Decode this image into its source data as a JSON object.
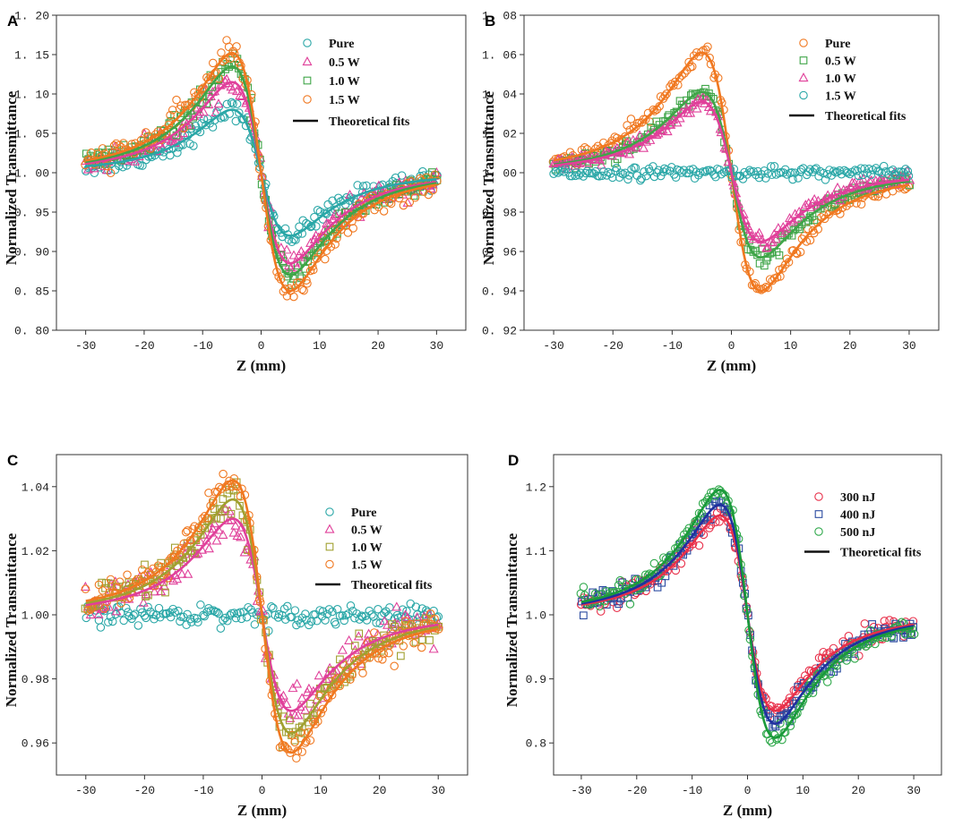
{
  "chart_data": [
    {
      "panel": "A",
      "type": "scatter",
      "xlabel": "Z  (mm)",
      "ylabel": "Normalized Transmittance",
      "xlim": [
        -35,
        35
      ],
      "ylim": [
        0.8,
        1.2
      ],
      "xticks": [
        -30,
        -20,
        -10,
        0,
        10,
        20,
        30
      ],
      "xtick_labels": [
        "-30",
        "-20",
        "-10",
        "0",
        "10",
        "20",
        "30"
      ],
      "yticks": [
        0.8,
        0.85,
        0.9,
        0.95,
        1.0,
        1.05,
        1.1,
        1.15,
        1.2
      ],
      "ytick_labels": [
        "0. 80",
        "0. 85",
        "0. 90",
        "0. 95",
        "1. 00",
        "1. 05",
        "1. 10",
        "1. 15",
        "1. 20"
      ],
      "legend_position": "top-right",
      "fit_label": "Theoretical fits",
      "series": [
        {
          "name": "Pure",
          "marker": "circle",
          "color": "#2aa7a7",
          "peak": 1.08,
          "valley": 0.92,
          "noise": 0.006
        },
        {
          "name": "0.5 W",
          "marker": "triangle",
          "color": "#e0409a",
          "peak": 1.115,
          "valley": 0.885,
          "noise": 0.007
        },
        {
          "name": "1.0 W",
          "marker": "square",
          "color": "#3fa548",
          "peak": 1.135,
          "valley": 0.87,
          "noise": 0.007
        },
        {
          "name": "1.5 W",
          "marker": "circle",
          "color": "#f07820",
          "peak": 1.152,
          "valley": 0.85,
          "noise": 0.008
        }
      ]
    },
    {
      "panel": "B",
      "type": "scatter",
      "xlabel": "Z  (mm)",
      "ylabel": "Normalized Transmittance",
      "xlim": [
        -35,
        35
      ],
      "ylim": [
        0.92,
        1.08
      ],
      "xticks": [
        -30,
        -20,
        -10,
        0,
        10,
        20,
        30
      ],
      "xtick_labels": [
        "-30",
        "-20",
        "-10",
        "0",
        "10",
        "20",
        "30"
      ],
      "yticks": [
        0.92,
        0.94,
        0.96,
        0.98,
        1.0,
        1.02,
        1.04,
        1.06,
        1.08
      ],
      "ytick_labels": [
        "0. 92",
        "0. 94",
        "0. 96",
        "0. 98",
        "1. 00",
        "1. 02",
        "1. 04",
        "1. 06",
        "1. 08"
      ],
      "legend_position": "top-right",
      "fit_label": "Theoretical fits",
      "series": [
        {
          "name": "Pure",
          "marker": "circle",
          "color": "#f07820",
          "peak": 1.061,
          "valley": 0.94,
          "noise": 0.002
        },
        {
          "name": "0.5 W",
          "marker": "square",
          "color": "#3fa548",
          "peak": 1.041,
          "valley": 0.957,
          "noise": 0.002
        },
        {
          "name": "1.0 W",
          "marker": "triangle",
          "color": "#e0409a",
          "peak": 1.036,
          "valley": 0.965,
          "noise": 0.002
        },
        {
          "name": "1.5 W",
          "marker": "circle",
          "color": "#2aa7a7",
          "peak": 1.0,
          "valley": 1.0,
          "noise": 0.0015
        }
      ]
    },
    {
      "panel": "C",
      "type": "scatter",
      "xlabel": "Z  (mm)",
      "ylabel": "Normalized Transmittance",
      "xlim": [
        -35,
        35
      ],
      "ylim": [
        0.95,
        1.05
      ],
      "xticks": [
        -30,
        -20,
        -10,
        0,
        10,
        20,
        30
      ],
      "xtick_labels": [
        "-30",
        "-20",
        "-10",
        "0",
        "10",
        "20",
        "30"
      ],
      "yticks": [
        0.96,
        0.98,
        1.0,
        1.02,
        1.04
      ],
      "ytick_labels": [
        "0.96",
        "0.98",
        "1.00",
        "1.02",
        "1.04"
      ],
      "legend_position": "right",
      "fit_label": "Theoretical fits",
      "series": [
        {
          "name": "Pure",
          "marker": "circle",
          "color": "#2aa7a7",
          "peak": 1.0,
          "valley": 1.0,
          "noise": 0.0015
        },
        {
          "name": "0.5 W",
          "marker": "triangle",
          "color": "#e0409a",
          "peak": 1.03,
          "valley": 0.97,
          "noise": 0.003
        },
        {
          "name": "1.0 W",
          "marker": "square",
          "color": "#a0a030",
          "peak": 1.036,
          "valley": 0.963,
          "noise": 0.003
        },
        {
          "name": "1.5 W",
          "marker": "circle",
          "color": "#f07820",
          "peak": 1.042,
          "valley": 0.957,
          "noise": 0.0025
        }
      ]
    },
    {
      "panel": "D",
      "type": "scatter",
      "xlabel": "Z  (mm)",
      "ylabel": "Normalized Transmittance",
      "xlim": [
        -35,
        35
      ],
      "ylim": [
        0.75,
        1.25
      ],
      "xticks": [
        -30,
        -20,
        -10,
        0,
        10,
        20,
        30
      ],
      "xtick_labels": [
        "-30",
        "-20",
        "-10",
        "0",
        "10",
        "20",
        "30"
      ],
      "yticks": [
        0.8,
        0.9,
        1.0,
        1.1,
        1.2
      ],
      "ytick_labels": [
        "0.8",
        "0.9",
        "1.0",
        "1.1",
        "1.2"
      ],
      "legend_position": "top-right",
      "fit_label": "Theoretical fits",
      "series": [
        {
          "name": "300 nJ",
          "marker": "circle",
          "color": "#e8304a",
          "fit_color": "#e8304a",
          "peak": 1.155,
          "valley": 0.85,
          "noise": 0.008
        },
        {
          "name": "400 nJ",
          "marker": "square",
          "color": "#2a4aa0",
          "fit_color": "#2030a0",
          "peak": 1.172,
          "valley": 0.83,
          "noise": 0.008
        },
        {
          "name": "500 nJ",
          "marker": "circle",
          "color": "#2ea84a",
          "fit_color": "#1a9a3a",
          "peak": 1.195,
          "valley": 0.808,
          "noise": 0.008
        }
      ]
    }
  ]
}
